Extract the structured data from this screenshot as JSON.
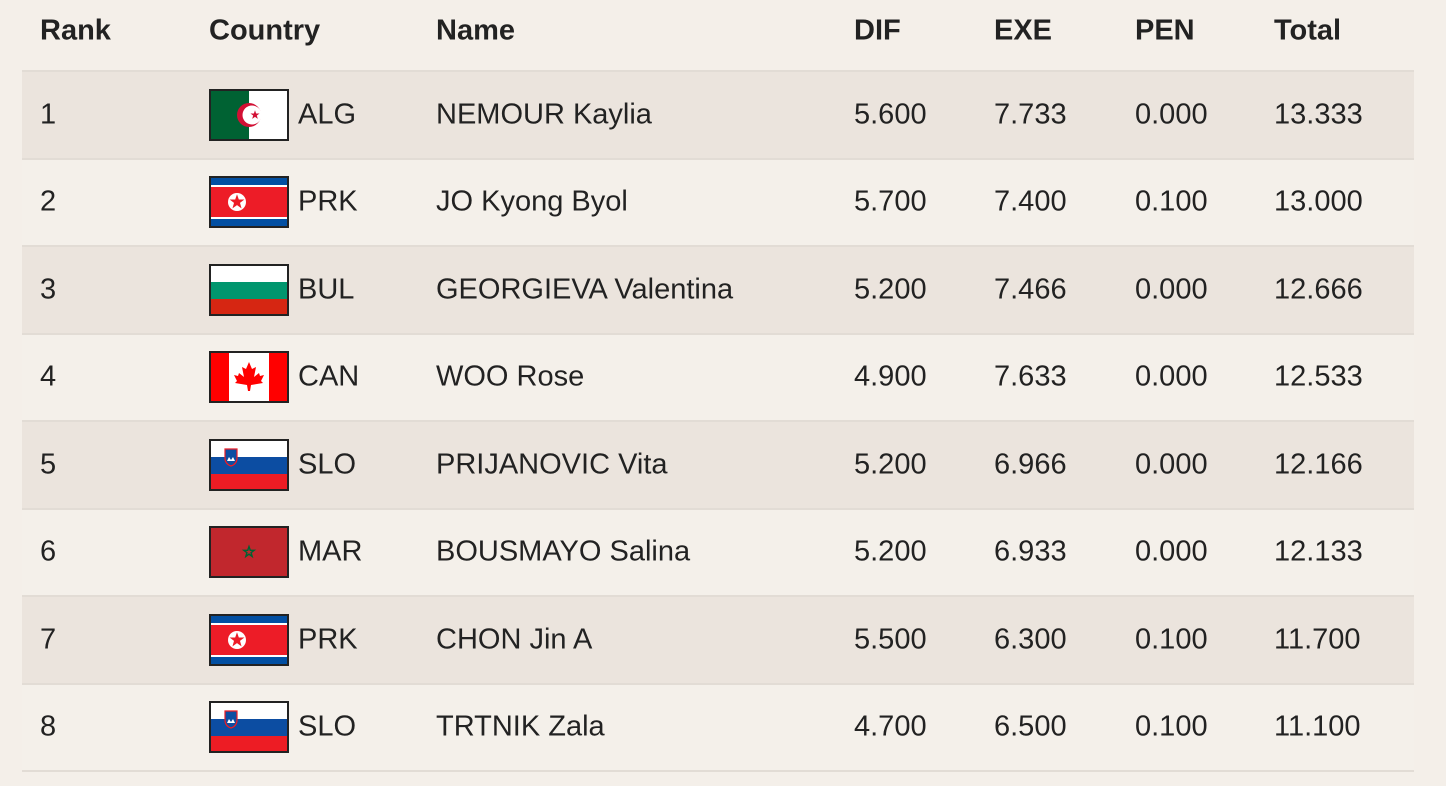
{
  "table": {
    "headers": [
      "Rank",
      "Country",
      "Name",
      "DIF",
      "EXE",
      "PEN",
      "Total"
    ],
    "rows": [
      [
        "1",
        "ALG",
        "NEMOUR Kaylia",
        "5.600",
        "7.733",
        "0.000",
        "13.333"
      ],
      [
        "2",
        "PRK",
        "JO Kyong Byol",
        "5.700",
        "7.400",
        "0.100",
        "13.000"
      ],
      [
        "3",
        "BUL",
        "GEORGIEVA Valentina",
        "5.200",
        "7.466",
        "0.000",
        "12.666"
      ],
      [
        "4",
        "CAN",
        "WOO Rose",
        "4.900",
        "7.633",
        "0.000",
        "12.533"
      ],
      [
        "5",
        "SLO",
        "PRIJANOVIC Vita",
        "5.200",
        "6.966",
        "0.000",
        "12.166"
      ],
      [
        "6",
        "MAR",
        "BOUSMAYO Salina",
        "5.200",
        "6.933",
        "0.000",
        "12.133"
      ],
      [
        "7",
        "PRK",
        "CHON Jin A",
        "5.500",
        "6.300",
        "0.100",
        "11.700"
      ],
      [
        "8",
        "SLO",
        "TRTNIK Zala",
        "4.700",
        "6.500",
        "0.100",
        "11.100"
      ]
    ]
  }
}
